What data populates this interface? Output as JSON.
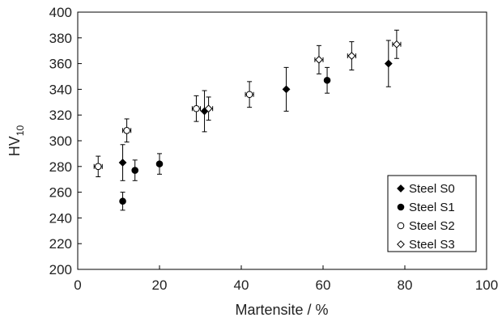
{
  "chart_data": {
    "type": "scatter",
    "xlabel": "Martensite / %",
    "ylabel_main": "HV",
    "ylabel_sub": "10",
    "xlim": [
      0,
      100
    ],
    "ylim": [
      200,
      400
    ],
    "x_ticks": [
      "0",
      "20",
      "40",
      "60",
      "80",
      "100"
    ],
    "y_ticks": [
      "200",
      "220",
      "240",
      "260",
      "280",
      "300",
      "320",
      "340",
      "360",
      "380",
      "400"
    ],
    "grid": false,
    "legend_position": "bottom-right",
    "series": [
      {
        "name": "Steel S0",
        "marker": "diamond-filled",
        "points": [
          {
            "x": 11,
            "y": 283,
            "yerr": 14
          },
          {
            "x": 31,
            "y": 323,
            "yerr": 16
          },
          {
            "x": 51,
            "y": 340,
            "yerr": 17
          },
          {
            "x": 76,
            "y": 360,
            "yerr": 18
          }
        ]
      },
      {
        "name": "Steel S1",
        "marker": "circle-filled",
        "points": [
          {
            "x": 11,
            "y": 253,
            "yerr": 7
          },
          {
            "x": 14,
            "y": 277,
            "yerr": 8
          },
          {
            "x": 20,
            "y": 282,
            "yerr": 8
          },
          {
            "x": 61,
            "y": 347,
            "yerr": 10
          }
        ]
      },
      {
        "name": "Steel S2",
        "marker": "circle-open",
        "points": [
          {
            "x": 5,
            "y": 280,
            "yerr": 8,
            "xerr": 1
          },
          {
            "x": 12,
            "y": 308,
            "yerr": 9,
            "xerr": 1
          },
          {
            "x": 29,
            "y": 325,
            "yerr": 10,
            "xerr": 1
          },
          {
            "x": 42,
            "y": 336,
            "yerr": 10,
            "xerr": 1
          }
        ]
      },
      {
        "name": "Steel S3",
        "marker": "diamond-open",
        "points": [
          {
            "x": 32,
            "y": 325,
            "yerr": 9,
            "xerr": 1
          },
          {
            "x": 59,
            "y": 363,
            "yerr": 11,
            "xerr": 1
          },
          {
            "x": 67,
            "y": 366,
            "yerr": 11,
            "xerr": 1
          },
          {
            "x": 78,
            "y": 375,
            "yerr": 11,
            "xerr": 1
          }
        ]
      }
    ]
  }
}
